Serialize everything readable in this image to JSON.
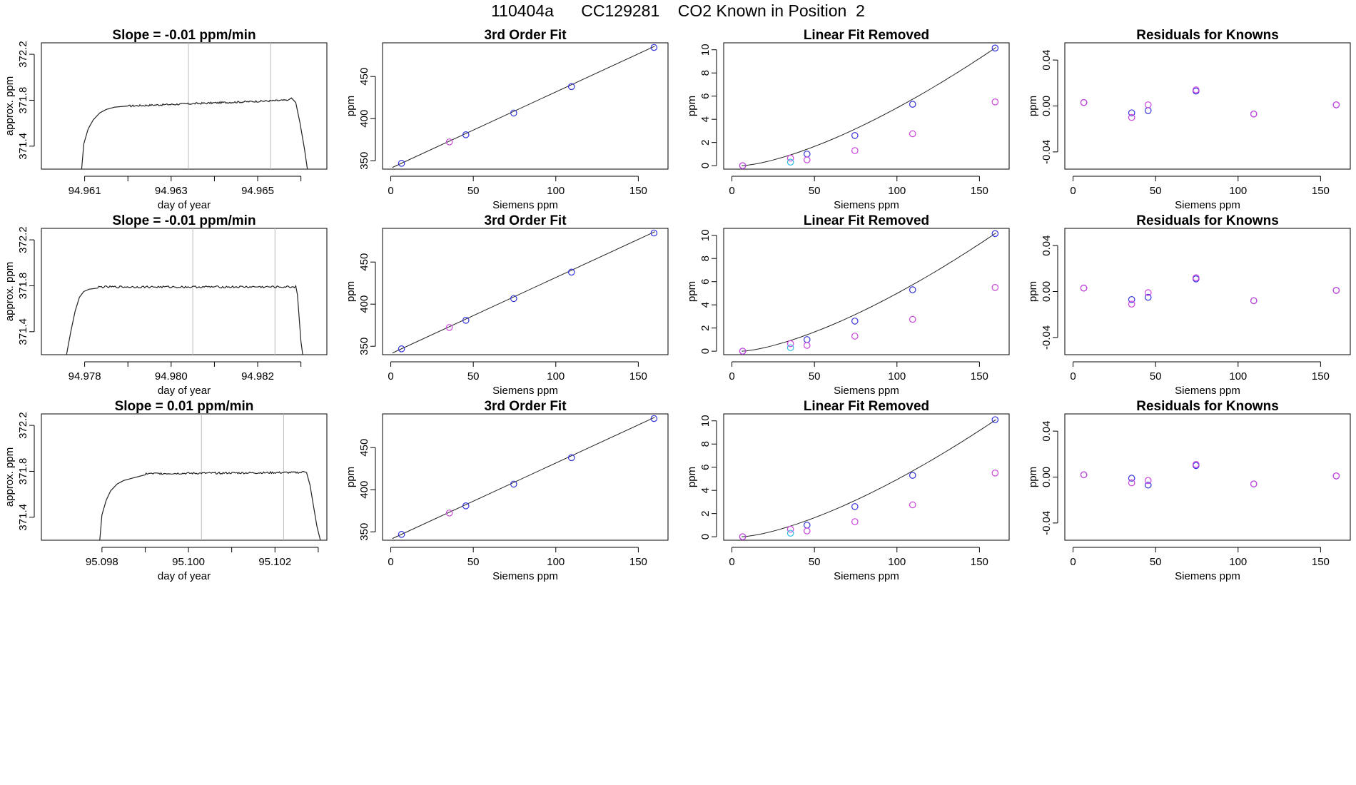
{
  "title": "110404a      CC129281    CO2 Known in Position  2",
  "colors": {
    "axis": "#000000",
    "line": "#222222",
    "grid_vline": "#bbbbbb",
    "point_blue": "#3333dd",
    "point_magenta": "#cc44dd",
    "point_cyan": "#33bbdd",
    "point_red": "#dd4444"
  },
  "chart_data": [
    {
      "type": "line",
      "row": 0,
      "col": 0,
      "title": "Slope =  -0.01  ppm/min",
      "xlabel": "day of year",
      "ylabel": "approx. ppm",
      "xlim": [
        94.96,
        94.9666
      ],
      "ylim": [
        371.2,
        372.3
      ],
      "xticks": [
        94.961,
        94.963,
        94.965
      ],
      "xtick_labels": [
        "94.961",
        "94.963",
        "94.965"
      ],
      "xminor": [
        94.962,
        94.964,
        94.966
      ],
      "yticks": [
        371.4,
        371.8,
        372.2
      ],
      "ytick_labels": [
        "371.4",
        "371.8",
        "372.2"
      ],
      "vlines": [
        94.9634,
        94.9653
      ],
      "rise_x": [
        94.96093,
        94.96098,
        94.96108,
        94.9612,
        94.96135,
        94.9615,
        94.9617,
        94.962
      ],
      "rise_y": [
        371.2,
        371.42,
        371.55,
        371.63,
        371.69,
        371.72,
        371.74,
        371.75
      ],
      "flat_x0": 94.962,
      "flat_x1": 94.9657,
      "flat_y0": 371.75,
      "flat_y1": 371.8,
      "flat_noise": 0.008,
      "fall_x": [
        94.9657,
        94.96578,
        94.96588,
        94.96598,
        94.96608,
        94.96615
      ],
      "fall_y": [
        371.8,
        371.82,
        371.78,
        371.6,
        371.38,
        371.2
      ]
    },
    {
      "type": "scatter",
      "row": 0,
      "col": 1,
      "title": "3rd Order Fit",
      "xlabel": "Siemens ppm",
      "ylabel": "ppm",
      "xlim": [
        -5,
        168
      ],
      "ylim": [
        340,
        490
      ],
      "xticks": [
        0,
        50,
        100,
        150
      ],
      "xtick_labels": [
        "0",
        "50",
        "100",
        "150"
      ],
      "yticks": [
        350,
        400,
        450
      ],
      "ytick_labels": [
        "350",
        "400",
        "450"
      ],
      "fit_line": {
        "x": [
          1,
          160
        ],
        "y": [
          342,
          486
        ]
      },
      "points": [
        {
          "x": 6.5,
          "y": 346.9,
          "color": "blue"
        },
        {
          "x": 35.5,
          "y": 372.3,
          "color": "magenta"
        },
        {
          "x": 45.5,
          "y": 380.8,
          "color": "blue"
        },
        {
          "x": 74.5,
          "y": 406.6,
          "color": "blue"
        },
        {
          "x": 109.5,
          "y": 438.0,
          "color": "blue"
        },
        {
          "x": 159.5,
          "y": 484.5,
          "color": "blue"
        }
      ]
    },
    {
      "type": "scatter",
      "row": 0,
      "col": 2,
      "title": "Linear Fit Removed",
      "xlabel": "Siemens ppm",
      "ylabel": "ppm",
      "xlim": [
        -5,
        168
      ],
      "ylim": [
        -0.3,
        10.6
      ],
      "xticks": [
        0,
        50,
        100,
        150
      ],
      "xtick_labels": [
        "0",
        "50",
        "100",
        "150"
      ],
      "yticks": [
        0,
        2,
        4,
        6,
        8,
        10
      ],
      "ytick_labels": [
        "0",
        "2",
        "4",
        "6",
        "8",
        "10"
      ],
      "fit_curve": {
        "x_start": 6,
        "x_end": 160,
        "exponent": 1.45,
        "y_end": 10.2
      },
      "points": [
        {
          "x": 6.5,
          "y": 0.0,
          "color": "blue"
        },
        {
          "x": 6.5,
          "y": 0.0,
          "color": "magenta"
        },
        {
          "x": 35.5,
          "y": 0.65,
          "color": "magenta"
        },
        {
          "x": 35.5,
          "y": 0.3,
          "color": "cyan"
        },
        {
          "x": 45.5,
          "y": 1.0,
          "color": "blue"
        },
        {
          "x": 45.5,
          "y": 0.5,
          "color": "magenta"
        },
        {
          "x": 74.5,
          "y": 2.6,
          "color": "blue"
        },
        {
          "x": 74.5,
          "y": 1.3,
          "color": "magenta"
        },
        {
          "x": 109.5,
          "y": 5.3,
          "color": "blue"
        },
        {
          "x": 109.5,
          "y": 2.75,
          "color": "magenta"
        },
        {
          "x": 159.5,
          "y": 10.15,
          "color": "blue"
        },
        {
          "x": 159.5,
          "y": 5.5,
          "color": "magenta"
        }
      ]
    },
    {
      "type": "scatter",
      "row": 0,
      "col": 3,
      "title": "Residuals for Knowns",
      "xlabel": "Siemens ppm",
      "ylabel": "ppm",
      "xlim": [
        -5,
        168
      ],
      "ylim": [
        -0.055,
        0.055
      ],
      "xticks": [
        0,
        50,
        100,
        150
      ],
      "xtick_labels": [
        "0",
        "50",
        "100",
        "150"
      ],
      "yticks": [
        -0.04,
        0.0,
        0.04
      ],
      "ytick_labels": [
        "-0.04",
        "0.00",
        "0.04"
      ],
      "points": [
        {
          "x": 6.5,
          "y": 0.003,
          "color": "blue"
        },
        {
          "x": 6.5,
          "y": 0.003,
          "color": "magenta"
        },
        {
          "x": 35.5,
          "y": -0.006,
          "color": "blue"
        },
        {
          "x": 35.5,
          "y": -0.01,
          "color": "magenta"
        },
        {
          "x": 45.5,
          "y": -0.004,
          "color": "blue"
        },
        {
          "x": 45.5,
          "y": 0.001,
          "color": "magenta"
        },
        {
          "x": 74.5,
          "y": 0.013,
          "color": "blue"
        },
        {
          "x": 74.5,
          "y": 0.014,
          "color": "magenta"
        },
        {
          "x": 109.5,
          "y": -0.007,
          "color": "blue"
        },
        {
          "x": 109.5,
          "y": -0.007,
          "color": "magenta"
        },
        {
          "x": 159.5,
          "y": 0.001,
          "color": "blue"
        },
        {
          "x": 159.5,
          "y": 0.001,
          "color": "magenta"
        }
      ]
    },
    {
      "type": "line",
      "row": 1,
      "col": 0,
      "title": "Slope =  -0.01  ppm/min",
      "xlabel": "day of year",
      "ylabel": "approx. ppm",
      "xlim": [
        94.977,
        94.9836
      ],
      "ylim": [
        371.2,
        372.3
      ],
      "xticks": [
        94.978,
        94.98,
        94.982
      ],
      "xtick_labels": [
        "94.978",
        "94.980",
        "94.982"
      ],
      "xminor": [
        94.979,
        94.981,
        94.983
      ],
      "yticks": [
        371.4,
        371.8,
        372.2
      ],
      "ytick_labels": [
        "371.4",
        "371.8",
        "372.2"
      ],
      "vlines": [
        94.9805,
        94.9824
      ],
      "rise_x": [
        94.97758,
        94.97768,
        94.97778,
        94.97788,
        94.97798,
        94.9781,
        94.9783
      ],
      "rise_y": [
        371.2,
        371.4,
        371.58,
        371.7,
        371.75,
        371.77,
        371.78
      ],
      "flat_x0": 94.9783,
      "flat_x1": 94.98288,
      "flat_y0": 371.79,
      "flat_y1": 371.79,
      "flat_noise": 0.009,
      "fall_x": [
        94.98288,
        94.98292,
        94.98296,
        94.983,
        94.98304
      ],
      "fall_y": [
        371.8,
        371.72,
        371.52,
        371.32,
        371.2
      ]
    },
    {
      "type": "scatter",
      "row": 1,
      "col": 1,
      "title": "3rd Order Fit",
      "xlabel": "Siemens ppm",
      "ylabel": "ppm",
      "xlim": [
        -5,
        168
      ],
      "ylim": [
        340,
        490
      ],
      "xticks": [
        0,
        50,
        100,
        150
      ],
      "xtick_labels": [
        "0",
        "50",
        "100",
        "150"
      ],
      "yticks": [
        350,
        400,
        450
      ],
      "ytick_labels": [
        "350",
        "400",
        "450"
      ],
      "fit_line": {
        "x": [
          1,
          160
        ],
        "y": [
          342,
          486
        ]
      },
      "points": [
        {
          "x": 6.5,
          "y": 346.9,
          "color": "blue"
        },
        {
          "x": 35.5,
          "y": 372.3,
          "color": "magenta"
        },
        {
          "x": 45.5,
          "y": 380.8,
          "color": "blue"
        },
        {
          "x": 74.5,
          "y": 406.6,
          "color": "blue"
        },
        {
          "x": 109.5,
          "y": 438.0,
          "color": "blue"
        },
        {
          "x": 159.5,
          "y": 484.5,
          "color": "blue"
        }
      ]
    },
    {
      "type": "scatter",
      "row": 1,
      "col": 2,
      "title": "Linear Fit Removed",
      "xlabel": "Siemens ppm",
      "ylabel": "ppm",
      "xlim": [
        -5,
        168
      ],
      "ylim": [
        -0.3,
        10.6
      ],
      "xticks": [
        0,
        50,
        100,
        150
      ],
      "xtick_labels": [
        "0",
        "50",
        "100",
        "150"
      ],
      "yticks": [
        0,
        2,
        4,
        6,
        8,
        10
      ],
      "ytick_labels": [
        "0",
        "2",
        "4",
        "6",
        "8",
        "10"
      ],
      "fit_curve": {
        "x_start": 6,
        "x_end": 160,
        "exponent": 1.45,
        "y_end": 10.2
      },
      "points": [
        {
          "x": 6.5,
          "y": 0.0,
          "color": "blue"
        },
        {
          "x": 6.5,
          "y": 0.0,
          "color": "magenta"
        },
        {
          "x": 35.5,
          "y": 0.65,
          "color": "magenta"
        },
        {
          "x": 35.5,
          "y": 0.3,
          "color": "cyan"
        },
        {
          "x": 45.5,
          "y": 1.0,
          "color": "blue"
        },
        {
          "x": 45.5,
          "y": 0.5,
          "color": "magenta"
        },
        {
          "x": 74.5,
          "y": 2.6,
          "color": "blue"
        },
        {
          "x": 74.5,
          "y": 1.3,
          "color": "magenta"
        },
        {
          "x": 109.5,
          "y": 5.3,
          "color": "blue"
        },
        {
          "x": 109.5,
          "y": 2.75,
          "color": "magenta"
        },
        {
          "x": 159.5,
          "y": 10.15,
          "color": "blue"
        },
        {
          "x": 159.5,
          "y": 5.5,
          "color": "magenta"
        }
      ]
    },
    {
      "type": "scatter",
      "row": 1,
      "col": 3,
      "title": "Residuals for Knowns",
      "xlabel": "Siemens ppm",
      "ylabel": "ppm",
      "xlim": [
        -5,
        168
      ],
      "ylim": [
        -0.055,
        0.055
      ],
      "xticks": [
        0,
        50,
        100,
        150
      ],
      "xtick_labels": [
        "0",
        "50",
        "100",
        "150"
      ],
      "yticks": [
        -0.04,
        0.0,
        0.04
      ],
      "ytick_labels": [
        "-0.04",
        "0.00",
        "0.04"
      ],
      "points": [
        {
          "x": 6.5,
          "y": 0.003,
          "color": "blue"
        },
        {
          "x": 6.5,
          "y": 0.003,
          "color": "magenta"
        },
        {
          "x": 35.5,
          "y": -0.007,
          "color": "blue"
        },
        {
          "x": 35.5,
          "y": -0.011,
          "color": "magenta"
        },
        {
          "x": 45.5,
          "y": -0.005,
          "color": "blue"
        },
        {
          "x": 45.5,
          "y": -0.001,
          "color": "magenta"
        },
        {
          "x": 74.5,
          "y": 0.011,
          "color": "blue"
        },
        {
          "x": 74.5,
          "y": 0.012,
          "color": "magenta"
        },
        {
          "x": 109.5,
          "y": -0.008,
          "color": "blue"
        },
        {
          "x": 109.5,
          "y": -0.008,
          "color": "magenta"
        },
        {
          "x": 159.5,
          "y": 0.001,
          "color": "blue"
        },
        {
          "x": 159.5,
          "y": 0.001,
          "color": "magenta"
        }
      ]
    },
    {
      "type": "line",
      "row": 2,
      "col": 0,
      "title": "Slope =  0.01  ppm/min",
      "xlabel": "day of year",
      "ylabel": "approx. ppm",
      "xlim": [
        95.0966,
        95.1032
      ],
      "ylim": [
        371.2,
        372.3
      ],
      "xticks": [
        95.098,
        95.1,
        95.102
      ],
      "xtick_labels": [
        "95.098",
        "95.100",
        "95.102"
      ],
      "xminor": [
        95.099,
        95.101,
        95.103
      ],
      "yticks": [
        371.4,
        371.8,
        372.2
      ],
      "ytick_labels": [
        "371.4",
        "371.8",
        "372.2"
      ],
      "vlines": [
        95.1003,
        95.1022
      ],
      "rise_x": [
        95.09795,
        95.098,
        95.0981,
        95.0982,
        95.09835,
        95.0985,
        95.0987,
        95.099
      ],
      "rise_y": [
        371.2,
        371.42,
        371.55,
        371.63,
        371.69,
        371.72,
        371.74,
        371.77
      ],
      "flat_x0": 95.099,
      "flat_x1": 95.10265,
      "flat_y0": 371.78,
      "flat_y1": 371.79,
      "flat_noise": 0.008,
      "fall_x": [
        95.10265,
        95.10273,
        95.10281,
        95.10289,
        95.10297,
        95.10305
      ],
      "fall_y": [
        371.8,
        371.79,
        371.68,
        371.5,
        371.32,
        371.2
      ]
    },
    {
      "type": "scatter",
      "row": 2,
      "col": 1,
      "title": "3rd Order Fit",
      "xlabel": "Siemens ppm",
      "ylabel": "ppm",
      "xlim": [
        -5,
        168
      ],
      "ylim": [
        340,
        490
      ],
      "xticks": [
        0,
        50,
        100,
        150
      ],
      "xtick_labels": [
        "0",
        "50",
        "100",
        "150"
      ],
      "yticks": [
        350,
        400,
        450
      ],
      "ytick_labels": [
        "350",
        "400",
        "450"
      ],
      "fit_line": {
        "x": [
          1,
          160
        ],
        "y": [
          342,
          486
        ]
      },
      "points": [
        {
          "x": 6.5,
          "y": 346.9,
          "color": "blue"
        },
        {
          "x": 35.5,
          "y": 372.3,
          "color": "magenta"
        },
        {
          "x": 45.5,
          "y": 380.8,
          "color": "blue"
        },
        {
          "x": 74.5,
          "y": 406.6,
          "color": "blue"
        },
        {
          "x": 109.5,
          "y": 438.0,
          "color": "blue"
        },
        {
          "x": 159.5,
          "y": 484.5,
          "color": "blue"
        }
      ]
    },
    {
      "type": "scatter",
      "row": 2,
      "col": 2,
      "title": "Linear Fit Removed",
      "xlabel": "Siemens ppm",
      "ylabel": "ppm",
      "xlim": [
        -5,
        168
      ],
      "ylim": [
        -0.3,
        10.6
      ],
      "xticks": [
        0,
        50,
        100,
        150
      ],
      "xtick_labels": [
        "0",
        "50",
        "100",
        "150"
      ],
      "yticks": [
        0,
        2,
        4,
        6,
        8,
        10
      ],
      "ytick_labels": [
        "0",
        "2",
        "4",
        "6",
        "8",
        "10"
      ],
      "fit_curve": {
        "x_start": 6,
        "x_end": 160,
        "exponent": 1.45,
        "y_end": 10.1
      },
      "points": [
        {
          "x": 6.5,
          "y": 0.0,
          "color": "blue"
        },
        {
          "x": 6.5,
          "y": 0.0,
          "color": "magenta"
        },
        {
          "x": 35.5,
          "y": 0.65,
          "color": "magenta"
        },
        {
          "x": 35.5,
          "y": 0.3,
          "color": "cyan"
        },
        {
          "x": 45.5,
          "y": 1.0,
          "color": "blue"
        },
        {
          "x": 45.5,
          "y": 0.5,
          "color": "magenta"
        },
        {
          "x": 74.5,
          "y": 2.6,
          "color": "blue"
        },
        {
          "x": 74.5,
          "y": 1.3,
          "color": "magenta"
        },
        {
          "x": 109.5,
          "y": 5.3,
          "color": "blue"
        },
        {
          "x": 109.5,
          "y": 2.75,
          "color": "magenta"
        },
        {
          "x": 159.5,
          "y": 10.1,
          "color": "blue"
        },
        {
          "x": 159.5,
          "y": 5.5,
          "color": "magenta"
        }
      ]
    },
    {
      "type": "scatter",
      "row": 2,
      "col": 3,
      "title": "Residuals for Knowns",
      "xlabel": "Siemens ppm",
      "ylabel": "ppm",
      "xlim": [
        -5,
        168
      ],
      "ylim": [
        -0.055,
        0.055
      ],
      "xticks": [
        0,
        50,
        100,
        150
      ],
      "xtick_labels": [
        "0",
        "50",
        "100",
        "150"
      ],
      "yticks": [
        -0.04,
        0.0,
        0.04
      ],
      "ytick_labels": [
        "-0.04",
        "0.00",
        "0.04"
      ],
      "points": [
        {
          "x": 6.5,
          "y": 0.002,
          "color": "blue"
        },
        {
          "x": 6.5,
          "y": 0.002,
          "color": "magenta"
        },
        {
          "x": 35.5,
          "y": -0.001,
          "color": "blue"
        },
        {
          "x": 35.5,
          "y": -0.005,
          "color": "magenta"
        },
        {
          "x": 45.5,
          "y": -0.007,
          "color": "blue"
        },
        {
          "x": 45.5,
          "y": -0.003,
          "color": "magenta"
        },
        {
          "x": 74.5,
          "y": 0.01,
          "color": "blue"
        },
        {
          "x": 74.5,
          "y": 0.011,
          "color": "magenta"
        },
        {
          "x": 109.5,
          "y": -0.006,
          "color": "blue"
        },
        {
          "x": 109.5,
          "y": -0.006,
          "color": "magenta"
        },
        {
          "x": 159.5,
          "y": 0.001,
          "color": "blue"
        },
        {
          "x": 159.5,
          "y": 0.001,
          "color": "magenta"
        }
      ]
    }
  ]
}
